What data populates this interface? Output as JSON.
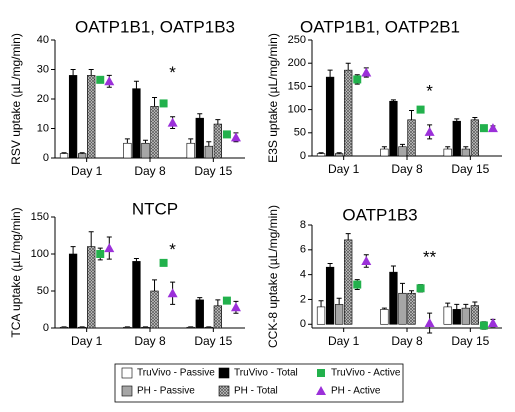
{
  "legend": [
    {
      "name": "TruVivo - Passive",
      "color": "#ffffff",
      "marker": "bar"
    },
    {
      "name": "TruVivo - Total",
      "color": "#000000",
      "marker": "bar"
    },
    {
      "name": "PH - Passive",
      "color": "#a6a6a6",
      "marker": "bar"
    },
    {
      "name": "PH - Total",
      "color": "#8c8c8c",
      "marker": "bar",
      "hatch": true
    },
    {
      "name": "TruVivo - Active",
      "color": "#22b14c",
      "marker": "square"
    },
    {
      "name": "PH - Active",
      "color": "#9b30d9",
      "marker": "triangle"
    }
  ],
  "chart_data": [
    {
      "type": "bar",
      "title": "OATP1B1, OATP1B3",
      "y_label": "RSV uptake (µL/mg/min)",
      "categories": [
        "Day 1",
        "Day 8",
        "Day 15"
      ],
      "ylim": [
        0,
        40
      ],
      "yticks": [
        0,
        10,
        20,
        30,
        40
      ],
      "significance": [
        null,
        "*",
        null
      ],
      "series": [
        {
          "values": [
            1.5,
            5,
            5
          ],
          "errors": [
            0.3,
            1.5,
            1.5
          ]
        },
        {
          "values": [
            28,
            23.5,
            13.5
          ],
          "errors": [
            2,
            2.5,
            1.5
          ]
        },
        {
          "values": [
            1.5,
            5,
            4
          ],
          "errors": [
            0.3,
            1,
            1.5
          ]
        },
        {
          "values": [
            28,
            17.5,
            11.5
          ],
          "errors": [
            2,
            3,
            1.5
          ]
        },
        {
          "values": [
            26.5,
            18.5,
            8
          ],
          "errors": [
            1,
            1,
            1
          ]
        },
        {
          "values": [
            26,
            12,
            7
          ],
          "errors": [
            2,
            2,
            1.5
          ]
        }
      ]
    },
    {
      "type": "bar",
      "title": "OATP1B1, OATP2B1",
      "y_label": "E3S uptake (µL/mg/min)",
      "categories": [
        "Day 1",
        "Day 8",
        "Day 15"
      ],
      "ylim": [
        0,
        250
      ],
      "yticks": [
        0,
        50,
        100,
        150,
        200,
        250
      ],
      "significance": [
        null,
        "*",
        null
      ],
      "series": [
        {
          "values": [
            5,
            15,
            15
          ],
          "errors": [
            2,
            5,
            5
          ]
        },
        {
          "values": [
            170,
            118,
            75
          ],
          "errors": [
            15,
            3,
            5
          ]
        },
        {
          "values": [
            5,
            20,
            15
          ],
          "errors": [
            2,
            5,
            5
          ]
        },
        {
          "values": [
            185,
            78,
            78
          ],
          "errors": [
            15,
            20,
            5
          ]
        },
        {
          "values": [
            165,
            100,
            60
          ],
          "errors": [
            10,
            3,
            3
          ]
        },
        {
          "values": [
            180,
            52,
            60
          ],
          "errors": [
            10,
            15,
            5
          ]
        }
      ]
    },
    {
      "type": "bar",
      "title": "NTCP",
      "y_label": "TCA uptake (µL/mg/min)",
      "categories": [
        "Day 1",
        "Day 8",
        "Day 15"
      ],
      "ylim": [
        0,
        150
      ],
      "yticks": [
        0,
        50,
        100,
        150
      ],
      "significance": [
        null,
        "*",
        null
      ],
      "series": [
        {
          "values": [
            1,
            1,
            1
          ],
          "errors": [
            0.5,
            0.5,
            0.5
          ]
        },
        {
          "values": [
            100,
            90,
            38
          ],
          "errors": [
            10,
            4,
            3
          ]
        },
        {
          "values": [
            1,
            1,
            1
          ],
          "errors": [
            0.5,
            0.5,
            0.5
          ]
        },
        {
          "values": [
            110,
            50,
            30
          ],
          "errors": [
            20,
            15,
            8
          ]
        },
        {
          "values": [
            100,
            88,
            37
          ],
          "errors": [
            8,
            2,
            2
          ]
        },
        {
          "values": [
            108,
            47,
            28
          ],
          "errors": [
            15,
            15,
            8
          ]
        }
      ]
    },
    {
      "type": "bar",
      "title": "OATP1B3",
      "y_label": "CCK-8 uptake (µL/mg/min)",
      "categories": [
        "Day 1",
        "Day 8",
        "Day 15"
      ],
      "ylim": [
        -0.3,
        8
      ],
      "yticks": [
        0,
        2,
        4,
        6,
        8
      ],
      "significance": [
        null,
        "**",
        null
      ],
      "series": [
        {
          "values": [
            1.4,
            1.2,
            1.4
          ],
          "errors": [
            0.5,
            0.1,
            0.3
          ]
        },
        {
          "values": [
            4.6,
            4.2,
            1.2
          ],
          "errors": [
            0.3,
            0.5,
            0.4
          ]
        },
        {
          "values": [
            1.6,
            2.5,
            1.3
          ],
          "errors": [
            0.5,
            0.8,
            0.3
          ]
        },
        {
          "values": [
            6.8,
            2.5,
            1.5
          ],
          "errors": [
            0.5,
            0.2,
            0.3
          ]
        },
        {
          "values": [
            3.2,
            2.9,
            -0.1
          ],
          "errors": [
            0.4,
            0.3,
            0.3
          ]
        },
        {
          "values": [
            5.1,
            0.1,
            0.1
          ],
          "errors": [
            0.5,
            0.8,
            0.3
          ]
        }
      ]
    }
  ]
}
